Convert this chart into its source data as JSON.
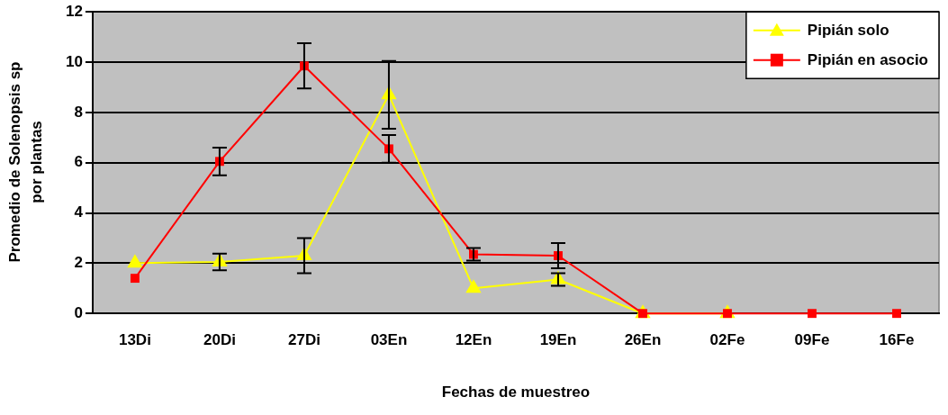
{
  "chart_data": {
    "type": "line",
    "xlabel": "Fechas de muestreo",
    "ylabel": "Promedio de Solenopsis sp por plantas",
    "categories": [
      "13Di",
      "20Di",
      "27Di",
      "03En",
      "12En",
      "19En",
      "26En",
      "02Fe",
      "09Fe",
      "16Fe"
    ],
    "ylim": [
      0,
      12
    ],
    "yticks": [
      0,
      2,
      4,
      6,
      8,
      10,
      12
    ],
    "grid": "y",
    "legend": "top right",
    "line_style": "solid",
    "series": [
      {
        "name": "Pipián solo",
        "color": "#ffff00",
        "marker": "triangle",
        "values": [
          2.0,
          2.05,
          2.3,
          8.7,
          1.0,
          1.35,
          0,
          0,
          null,
          null
        ],
        "errors": [
          null,
          0.33,
          0.7,
          1.35,
          null,
          0.25,
          null,
          null,
          null,
          null
        ]
      },
      {
        "name": "Pipián en asocio",
        "color": "#ff0000",
        "marker": "square",
        "values": [
          1.4,
          6.05,
          9.85,
          6.55,
          2.35,
          2.3,
          0,
          0,
          0,
          0
        ],
        "errors": [
          null,
          0.55,
          0.9,
          0.55,
          0.25,
          0.5,
          null,
          null,
          null,
          null
        ]
      }
    ]
  }
}
